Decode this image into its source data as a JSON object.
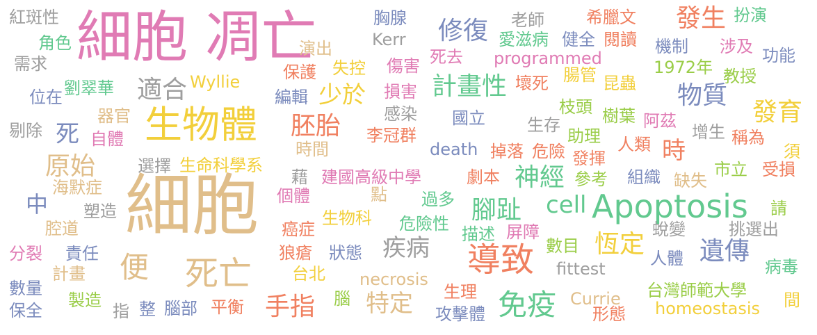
{
  "colors": {
    "pink": "#e07bb4",
    "tan": "#e0be8a",
    "gold": "#f2cf3b",
    "green": "#62c98f",
    "blue": "#7b8bbd",
    "gray": "#9e9e9e",
    "orange": "#f08060",
    "lime": "#9acd48"
  },
  "words": [
    {
      "text": "細胞",
      "color": "tan"
    },
    {
      "text": "細胞 凋亡",
      "color": "pink"
    },
    {
      "text": "生物體",
      "color": "gold"
    },
    {
      "text": "Apoptosis",
      "color": "green"
    },
    {
      "text": "導致",
      "color": "orange"
    },
    {
      "text": "死亡",
      "color": "tan"
    },
    {
      "text": "免疫",
      "color": "green"
    },
    {
      "text": "便",
      "color": "tan"
    },
    {
      "text": "cell",
      "color": "green"
    },
    {
      "text": "修復",
      "color": "blue"
    },
    {
      "text": "發生",
      "color": "orange"
    },
    {
      "text": "計畫性",
      "color": "green"
    },
    {
      "text": "少於",
      "color": "gold"
    },
    {
      "text": "物質",
      "color": "blue"
    },
    {
      "text": "發育",
      "color": "gold"
    },
    {
      "text": "胚胎",
      "color": "orange"
    },
    {
      "text": "適合",
      "color": "gray"
    },
    {
      "text": "原始",
      "color": "tan"
    },
    {
      "text": "神經",
      "color": "green"
    },
    {
      "text": "腳趾",
      "color": "green"
    },
    {
      "text": "恆定",
      "color": "gold"
    },
    {
      "text": "遺傳",
      "color": "blue"
    },
    {
      "text": "疾病",
      "color": "gray"
    },
    {
      "text": "手指",
      "color": "orange"
    },
    {
      "text": "特定",
      "color": "tan"
    },
    {
      "text": "時",
      "color": "orange"
    },
    {
      "text": "死",
      "color": "blue"
    },
    {
      "text": "中",
      "color": "blue"
    },
    {
      "text": "紅斑性",
      "color": "gray"
    },
    {
      "text": "胸腺",
      "color": "blue"
    },
    {
      "text": "Kerr",
      "color": "gray"
    },
    {
      "text": "老師",
      "color": "gray"
    },
    {
      "text": "希臘文",
      "color": "orange"
    },
    {
      "text": "扮演",
      "color": "green"
    },
    {
      "text": "角色",
      "color": "green"
    },
    {
      "text": "演出",
      "color": "tan"
    },
    {
      "text": "愛滋病",
      "color": "green"
    },
    {
      "text": "健全",
      "color": "blue"
    },
    {
      "text": "閱讀",
      "color": "orange"
    },
    {
      "text": "機制",
      "color": "blue"
    },
    {
      "text": "涉及",
      "color": "pink"
    },
    {
      "text": "功能",
      "color": "blue"
    },
    {
      "text": "需求",
      "color": "gray"
    },
    {
      "text": "死去",
      "color": "pink"
    },
    {
      "text": "programmed",
      "color": "pink"
    },
    {
      "text": "1972年",
      "color": "lime"
    },
    {
      "text": "保護",
      "color": "orange"
    },
    {
      "text": "失控",
      "color": "gold"
    },
    {
      "text": "傷害",
      "color": "pink"
    },
    {
      "text": "腸管",
      "color": "gold"
    },
    {
      "text": "劉翠華",
      "color": "green"
    },
    {
      "text": "Wyllie",
      "color": "gold"
    },
    {
      "text": "壞死",
      "color": "orange"
    },
    {
      "text": "昆蟲",
      "color": "gold"
    },
    {
      "text": "教授",
      "color": "lime"
    },
    {
      "text": "位在",
      "color": "blue"
    },
    {
      "text": "編輯",
      "color": "blue"
    },
    {
      "text": "損害",
      "color": "pink"
    },
    {
      "text": "器官",
      "color": "tan"
    },
    {
      "text": "感染",
      "color": "gray"
    },
    {
      "text": "枝頭",
      "color": "lime"
    },
    {
      "text": "樹葉",
      "color": "lime"
    },
    {
      "text": "阿茲",
      "color": "pink"
    },
    {
      "text": "國立",
      "color": "blue"
    },
    {
      "text": "剔除",
      "color": "gray"
    },
    {
      "text": "自體",
      "color": "pink"
    },
    {
      "text": "李冠群",
      "color": "orange"
    },
    {
      "text": "生存",
      "color": "gray"
    },
    {
      "text": "助理",
      "color": "lime"
    },
    {
      "text": "人類",
      "color": "orange"
    },
    {
      "text": "增生",
      "color": "gray"
    },
    {
      "text": "稱為",
      "color": "orange"
    },
    {
      "text": "時間",
      "color": "tan"
    },
    {
      "text": "death",
      "color": "blue"
    },
    {
      "text": "掉落",
      "color": "orange"
    },
    {
      "text": "危險",
      "color": "orange"
    },
    {
      "text": "須",
      "color": "gold"
    },
    {
      "text": "選擇",
      "color": "gray"
    },
    {
      "text": "生命科學系",
      "color": "gold"
    },
    {
      "text": "發揮",
      "color": "orange"
    },
    {
      "text": "藉",
      "color": "gray"
    },
    {
      "text": "建國高級中學",
      "color": "pink"
    },
    {
      "text": "劇本",
      "color": "orange"
    },
    {
      "text": "參考",
      "color": "lime"
    },
    {
      "text": "組織",
      "color": "blue"
    },
    {
      "text": "缺失",
      "color": "tan"
    },
    {
      "text": "市立",
      "color": "lime"
    },
    {
      "text": "受損",
      "color": "orange"
    },
    {
      "text": "海默症",
      "color": "tan"
    },
    {
      "text": "個體",
      "color": "pink"
    },
    {
      "text": "點",
      "color": "tan"
    },
    {
      "text": "過多",
      "color": "green"
    },
    {
      "text": "塑造",
      "color": "gray"
    },
    {
      "text": "生物科",
      "color": "gold"
    },
    {
      "text": "請",
      "color": "lime"
    },
    {
      "text": "腔道",
      "color": "tan"
    },
    {
      "text": "癌症",
      "color": "orange"
    },
    {
      "text": "危險性",
      "color": "green"
    },
    {
      "text": "描述",
      "color": "green"
    },
    {
      "text": "屏障",
      "color": "pink"
    },
    {
      "text": "蛻變",
      "color": "gray"
    },
    {
      "text": "挑選出",
      "color": "gray"
    },
    {
      "text": "分裂",
      "color": "pink"
    },
    {
      "text": "責任",
      "color": "blue"
    },
    {
      "text": "狼瘡",
      "color": "orange"
    },
    {
      "text": "狀態",
      "color": "blue"
    },
    {
      "text": "數目",
      "color": "lime"
    },
    {
      "text": "人體",
      "color": "blue"
    },
    {
      "text": "計畫",
      "color": "tan"
    },
    {
      "text": "台北",
      "color": "gold"
    },
    {
      "text": "necrosis",
      "color": "tan"
    },
    {
      "text": "fittest",
      "color": "gray"
    },
    {
      "text": "病毒",
      "color": "green"
    },
    {
      "text": "數量",
      "color": "blue"
    },
    {
      "text": "製造",
      "color": "lime"
    },
    {
      "text": "腦",
      "color": "lime"
    },
    {
      "text": "生理",
      "color": "orange"
    },
    {
      "text": "Currie",
      "color": "tan"
    },
    {
      "text": "台灣師範大學",
      "color": "lime"
    },
    {
      "text": "保全",
      "color": "blue"
    },
    {
      "text": "指",
      "color": "gray"
    },
    {
      "text": "整",
      "color": "blue"
    },
    {
      "text": "腦部",
      "color": "blue"
    },
    {
      "text": "平衡",
      "color": "orange"
    },
    {
      "text": "攻擊體",
      "color": "blue"
    },
    {
      "text": "形態",
      "color": "orange"
    },
    {
      "text": "homeostasis",
      "color": "gold"
    },
    {
      "text": "間",
      "color": "gold"
    }
  ]
}
